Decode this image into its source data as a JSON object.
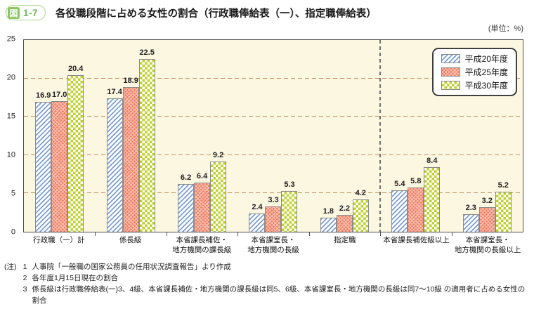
{
  "header": {
    "badge_fig": "図",
    "badge_num": "1-7",
    "title": "各役職段階に占める女性の割合（行政職俸給表（一）、指定職俸給表）"
  },
  "unit_label": "(単位：%)",
  "chart_data": {
    "type": "bar",
    "title": "各役職段階に占める女性の割合（行政職俸給表（一）、指定職俸給表）",
    "xlabel": "",
    "ylabel": "%",
    "ylim": [
      0,
      25
    ],
    "yticks": [
      0,
      5,
      10,
      15,
      20,
      25
    ],
    "grid_values": [
      5,
      10,
      15,
      20
    ],
    "grid": "dashed-horizontal",
    "legend_position": "top-right-inside",
    "divider_after_category_index": 4,
    "categories": [
      "行政職（一）計",
      "係長級",
      "本省課長補佐・\n地方機関の課長級",
      "本省課室長・\n地方機関の長級",
      "指定職",
      "本省課長補佐級以上",
      "本省課室長・\n地方機関の長級以上"
    ],
    "series": [
      {
        "name": "平成20年度",
        "pattern": "diagonal-stripes",
        "stripe_color": "#7d9ed6",
        "values": [
          16.9,
          17.4,
          6.2,
          2.4,
          1.8,
          5.4,
          2.3
        ]
      },
      {
        "name": "平成25年度",
        "pattern": "woven-crosshatch",
        "base_color": "#ee7a60",
        "texture_color": "#f9c3b3",
        "values": [
          17.0,
          18.9,
          6.4,
          3.3,
          2.2,
          5.8,
          3.2
        ]
      },
      {
        "name": "平成30年度",
        "pattern": "checkerboard",
        "check_color": "#bdd02f",
        "values": [
          20.4,
          22.5,
          9.2,
          5.3,
          4.2,
          8.4,
          5.2
        ]
      }
    ]
  },
  "colors": {
    "plot_bg": "#fcf7e1",
    "gridline": "#c08a5e",
    "divider": "#6f6f6f",
    "bar_border": "#8b8b8b",
    "badge_green": "#8cc561",
    "badge_border": "#a5d585",
    "badge_num_text": "#6cb85a"
  },
  "notes": {
    "prefix": "(注)",
    "items": [
      {
        "num": "1",
        "text": "人事院「一般職の国家公務員の任用状況調査報告」より作成"
      },
      {
        "num": "2",
        "text": "各年度1月15日現在の割合"
      },
      {
        "num": "3",
        "text": "係長級は行政職俸給表(一)3、4級、本省課長補佐・地方機関の課長級は同5、6級、本省課室長・地方機関の長級は同7～10級 の適用者に占める女性の割合"
      }
    ]
  }
}
